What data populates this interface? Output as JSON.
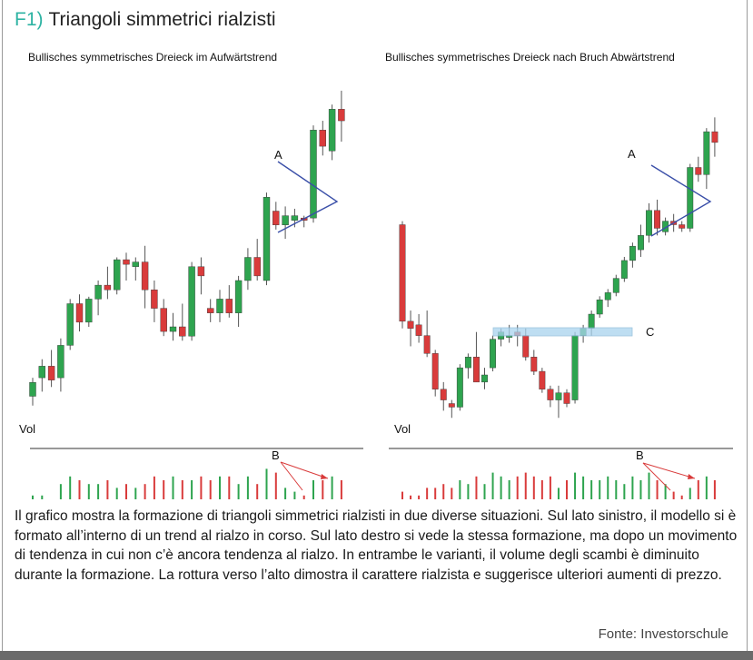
{
  "title": {
    "prefix": "F1)",
    "text": "Triangoli simmetrici rialzisti"
  },
  "accent_color": "#2eb3a3",
  "colors": {
    "up": "#2ea44f",
    "down": "#d93b3b",
    "triangle": "#3a4fa8",
    "resistance": "#a9d4ee"
  },
  "charts": [
    {
      "subtitle": "Bullisches symmetrisches Dreieck im Aufwärtstrend",
      "vol_label": "Vol",
      "pattern_label": "A",
      "volume_label": "B"
    },
    {
      "subtitle": "Bullisches symmetrisches Dreieck nach Bruch Abwärtstrend",
      "vol_label": "Vol",
      "pattern_label": "A",
      "volume_label": "B",
      "resistance_label": "C"
    }
  ],
  "chart_data": [
    {
      "type": "candlestick",
      "title": "Bullisches symmetrisches Dreieck im Aufwärtstrend",
      "ohlc": [
        [
          20,
          28,
          16,
          26
        ],
        [
          28,
          36,
          22,
          33
        ],
        [
          33,
          40,
          24,
          27
        ],
        [
          28,
          45,
          22,
          42
        ],
        [
          42,
          62,
          40,
          60
        ],
        [
          60,
          64,
          48,
          52
        ],
        [
          52,
          63,
          50,
          62
        ],
        [
          62,
          70,
          55,
          68
        ],
        [
          68,
          76,
          62,
          66
        ],
        [
          66,
          80,
          64,
          79
        ],
        [
          79,
          82,
          70,
          77
        ],
        [
          76,
          80,
          70,
          78
        ],
        [
          78,
          85,
          58,
          66
        ],
        [
          66,
          70,
          52,
          58
        ],
        [
          58,
          62,
          46,
          48
        ],
        [
          48,
          56,
          44,
          50
        ],
        [
          50,
          60,
          44,
          46
        ],
        [
          46,
          78,
          44,
          76
        ],
        [
          76,
          80,
          64,
          72
        ],
        [
          58,
          62,
          52,
          56
        ],
        [
          56,
          66,
          52,
          62
        ],
        [
          62,
          68,
          54,
          56
        ],
        [
          56,
          72,
          50,
          70
        ],
        [
          70,
          84,
          66,
          80
        ],
        [
          80,
          88,
          70,
          72
        ],
        [
          70,
          108,
          68,
          106
        ],
        [
          100,
          104,
          92,
          94
        ],
        [
          94,
          102,
          88,
          98
        ],
        [
          96,
          101,
          93,
          98
        ],
        [
          97,
          98,
          93,
          96
        ],
        [
          97,
          137,
          95,
          135
        ],
        [
          135,
          139,
          124,
          128
        ],
        [
          126,
          146,
          122,
          144
        ],
        [
          144,
          152,
          130,
          139
        ]
      ],
      "volume": [
        1,
        1,
        0,
        4,
        6,
        5,
        4,
        4,
        5,
        3,
        4,
        3,
        4,
        6,
        5,
        6,
        5,
        5,
        6,
        5,
        6,
        6,
        4,
        6,
        4,
        8,
        7,
        3,
        2,
        1,
        5,
        5,
        6,
        5
      ],
      "pattern": "symmetrical triangle (A)",
      "volume_note": "B"
    },
    {
      "type": "candlestick",
      "title": "Bullisches symmetrisches Dreieck nach Bruch Abwärtstrend",
      "ohlc": [
        [
          132,
          134,
          74,
          78
        ],
        [
          78,
          84,
          64,
          74
        ],
        [
          76,
          82,
          66,
          70
        ],
        [
          70,
          84,
          58,
          60
        ],
        [
          60,
          62,
          36,
          40
        ],
        [
          40,
          44,
          28,
          34
        ],
        [
          32,
          34,
          24,
          30
        ],
        [
          30,
          54,
          28,
          52
        ],
        [
          52,
          60,
          46,
          58
        ],
        [
          58,
          72,
          44,
          44
        ],
        [
          44,
          52,
          40,
          48
        ],
        [
          52,
          70,
          50,
          68
        ],
        [
          68,
          74,
          64,
          72
        ],
        [
          70,
          76,
          66,
          70
        ],
        [
          72,
          76,
          64,
          70
        ],
        [
          70,
          74,
          56,
          58
        ],
        [
          58,
          62,
          48,
          50
        ],
        [
          50,
          52,
          38,
          40
        ],
        [
          40,
          42,
          30,
          34
        ],
        [
          34,
          42,
          24,
          38
        ],
        [
          38,
          40,
          30,
          32
        ],
        [
          34,
          72,
          32,
          70
        ],
        [
          70,
          76,
          66,
          74
        ],
        [
          74,
          84,
          70,
          82
        ],
        [
          82,
          92,
          80,
          90
        ],
        [
          90,
          96,
          86,
          94
        ],
        [
          94,
          104,
          92,
          102
        ],
        [
          102,
          114,
          100,
          112
        ],
        [
          112,
          122,
          108,
          120
        ],
        [
          118,
          132,
          114,
          126
        ],
        [
          126,
          144,
          122,
          140
        ],
        [
          140,
          146,
          126,
          130
        ],
        [
          128,
          136,
          126,
          134
        ],
        [
          134,
          138,
          128,
          132
        ],
        [
          132,
          134,
          128,
          130
        ],
        [
          130,
          166,
          128,
          164
        ],
        [
          164,
          170,
          156,
          160
        ],
        [
          160,
          186,
          152,
          184
        ],
        [
          184,
          192,
          170,
          178
        ]
      ],
      "volume": [
        2,
        1,
        1,
        3,
        3,
        4,
        3,
        5,
        4,
        6,
        4,
        7,
        6,
        5,
        6,
        7,
        6,
        5,
        6,
        3,
        5,
        7,
        6,
        5,
        5,
        6,
        5,
        4,
        6,
        5,
        7,
        5,
        4,
        2,
        1,
        3,
        5,
        6,
        5
      ],
      "pattern": "symmetrical triangle (A)",
      "resistance_zone": "C",
      "volume_note": "B"
    }
  ],
  "caption": "Il grafico mostra la formazione di triangoli simmetrici rialzisti in due diverse situazioni. Sul lato sinistro, il modello si è formato all’interno di un trend al rialzo in corso. Sul lato destro si vede la stessa formazione, ma dopo un movimento di tendenza in cui non c’è ancora tendenza al rialzo. In entrambe le varianti, il volume degli scambi è diminuito durante la formazione. La rottura verso l’alto dimostra il carattere rialzista e suggerisce ulteriori aumenti di prezzo.",
  "source": "Fonte: Investorschule"
}
